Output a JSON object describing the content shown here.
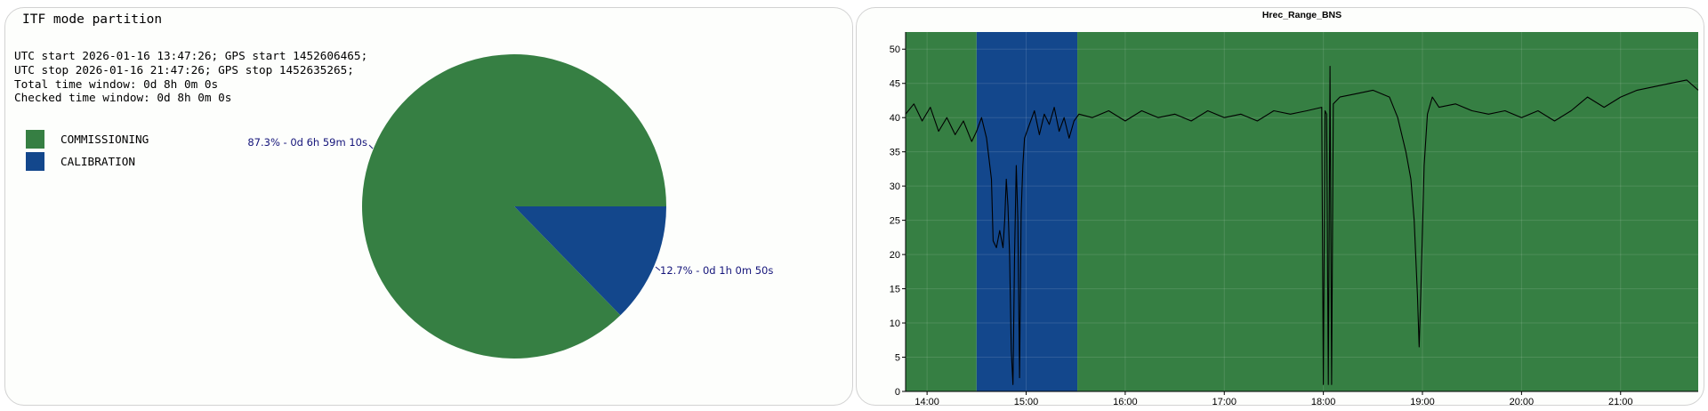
{
  "colors": {
    "commissioning": "#367f43",
    "calibration": "#13478c",
    "label_text": "#15157a",
    "line": "#000000"
  },
  "pie_panel": {
    "title": "ITF mode partition",
    "info_lines": [
      "UTC start 2026-01-16 13:47:26; GPS start 1452606465;",
      "UTC stop 2026-01-16 21:47:26; GPS stop 1452635265;",
      "Total time window: 0d 8h 0m 0s",
      "Checked time window: 0d 8h 0m 0s"
    ],
    "legend": [
      {
        "label": "COMMISSIONING",
        "color": "#367f43"
      },
      {
        "label": "CALIBRATION",
        "color": "#13478c"
      }
    ]
  },
  "chart_data": [
    {
      "type": "pie",
      "title": "ITF mode partition",
      "slices": [
        {
          "name": "COMMISSIONING",
          "value": 87.3,
          "label": "87.3% - 0d 6h 59m 10s",
          "color": "#367f43"
        },
        {
          "name": "CALIBRATION",
          "value": 12.7,
          "label": "12.7% - 0d 1h 0m 50s",
          "color": "#13478c"
        }
      ]
    },
    {
      "type": "line",
      "title": "Hrec_Range_BNS",
      "xlabel": "",
      "ylabel": "",
      "x_ticks": [
        "14:00",
        "15:00",
        "16:00",
        "17:00",
        "18:00",
        "19:00",
        "20:00",
        "21:00"
      ],
      "y_ticks": [
        0,
        5,
        10,
        15,
        20,
        25,
        30,
        35,
        40,
        45,
        50
      ],
      "xlim": [
        "13:47",
        "21:47"
      ],
      "ylim": [
        0,
        52.5
      ],
      "grid": true,
      "mode_bands": [
        {
          "mode": "COMMISSIONING",
          "start": "13:47",
          "end": "14:30"
        },
        {
          "mode": "CALIBRATION",
          "start": "14:30",
          "end": "15:31"
        },
        {
          "mode": "COMMISSIONING",
          "start": "15:31",
          "end": "21:47"
        }
      ],
      "series": [
        {
          "points": [
            [
              "13:47",
              40.5
            ],
            [
              "13:52",
              42
            ],
            [
              "13:57",
              39.5
            ],
            [
              "14:02",
              41.5
            ],
            [
              "14:07",
              38
            ],
            [
              "14:12",
              40
            ],
            [
              "14:17",
              37.5
            ],
            [
              "14:22",
              39.5
            ],
            [
              "14:27",
              36.5
            ],
            [
              "14:30",
              38
            ],
            [
              "14:33",
              40
            ],
            [
              "14:36",
              37
            ],
            [
              "14:39",
              31
            ],
            [
              "14:40",
              22
            ],
            [
              "14:42",
              21
            ],
            [
              "14:44",
              23.5
            ],
            [
              "14:46",
              21
            ],
            [
              "14:47",
              25
            ],
            [
              "14:48",
              31
            ],
            [
              "14:49",
              27
            ],
            [
              "14:50",
              20
            ],
            [
              "14:51",
              6
            ],
            [
              "14:52",
              1
            ],
            [
              "14:53",
              20
            ],
            [
              "14:54",
              33
            ],
            [
              "14:55",
              25
            ],
            [
              "14:56",
              2
            ],
            [
              "14:57",
              26
            ],
            [
              "14:58",
              33
            ],
            [
              "14:59",
              37
            ],
            [
              "15:02",
              39
            ],
            [
              "15:05",
              41
            ],
            [
              "15:08",
              37.5
            ],
            [
              "15:11",
              40.5
            ],
            [
              "15:14",
              39
            ],
            [
              "15:17",
              41.5
            ],
            [
              "15:20",
              38
            ],
            [
              "15:23",
              40
            ],
            [
              "15:26",
              37
            ],
            [
              "15:29",
              39.5
            ],
            [
              "15:32",
              40.5
            ],
            [
              "15:40",
              40
            ],
            [
              "15:50",
              41
            ],
            [
              "16:00",
              39.5
            ],
            [
              "16:10",
              41
            ],
            [
              "16:20",
              40
            ],
            [
              "16:30",
              40.5
            ],
            [
              "16:40",
              39.5
            ],
            [
              "16:50",
              41
            ],
            [
              "17:00",
              40
            ],
            [
              "17:10",
              40.5
            ],
            [
              "17:20",
              39.5
            ],
            [
              "17:30",
              41
            ],
            [
              "17:40",
              40.5
            ],
            [
              "17:50",
              41
            ],
            [
              "17:59",
              41.5
            ],
            [
              "18:00",
              1
            ],
            [
              "18:01",
              41
            ],
            [
              "18:02",
              40.5
            ],
            [
              "18:03",
              1
            ],
            [
              "18:04",
              47.5
            ],
            [
              "18:05",
              1
            ],
            [
              "18:06",
              42
            ],
            [
              "18:10",
              43
            ],
            [
              "18:20",
              43.5
            ],
            [
              "18:30",
              44
            ],
            [
              "18:40",
              43
            ],
            [
              "18:45",
              40
            ],
            [
              "18:50",
              35
            ],
            [
              "18:53",
              31
            ],
            [
              "18:55",
              25
            ],
            [
              "18:57",
              14
            ],
            [
              "18:58",
              6.5
            ],
            [
              "18:59",
              14
            ],
            [
              "19:01",
              33
            ],
            [
              "19:03",
              40.5
            ],
            [
              "19:06",
              43
            ],
            [
              "19:10",
              41.5
            ],
            [
              "19:20",
              42
            ],
            [
              "19:30",
              41
            ],
            [
              "19:40",
              40.5
            ],
            [
              "19:50",
              41
            ],
            [
              "20:00",
              40
            ],
            [
              "20:10",
              41
            ],
            [
              "20:20",
              39.5
            ],
            [
              "20:30",
              41
            ],
            [
              "20:40",
              43
            ],
            [
              "20:50",
              41.5
            ],
            [
              "21:00",
              43
            ],
            [
              "21:10",
              44
            ],
            [
              "21:20",
              44.5
            ],
            [
              "21:30",
              45
            ],
            [
              "21:40",
              45.5
            ],
            [
              "21:47",
              44
            ]
          ]
        }
      ]
    }
  ]
}
